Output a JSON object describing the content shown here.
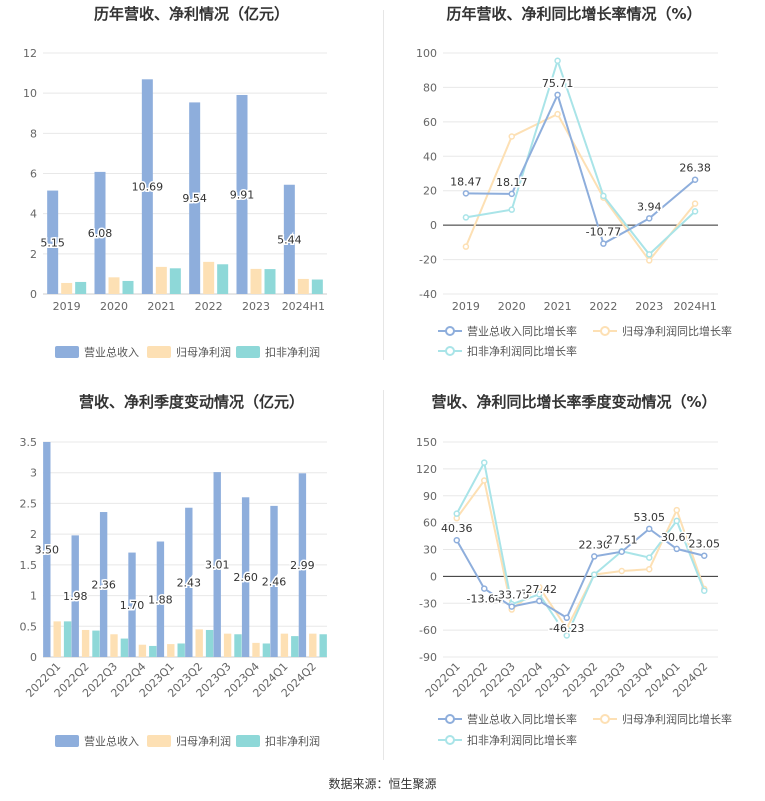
{
  "source": "数据来源：恒生聚源",
  "chart_data": [
    {
      "type": "bar",
      "title": "历年营收、净利情况（亿元）",
      "categories": [
        "2019",
        "2020",
        "2021",
        "2022",
        "2023",
        "2024H1"
      ],
      "ylim": [
        0,
        12
      ],
      "yticks": [
        0,
        2,
        4,
        6,
        8,
        10,
        12
      ],
      "legend_position": "bottom",
      "series": [
        {
          "name": "营业总收入",
          "color": "#8eaedc",
          "values": [
            5.15,
            6.08,
            10.69,
            9.54,
            9.91,
            5.44
          ],
          "labels": [
            "5.15",
            "6.08",
            "10.69",
            "9.54",
            "9.91",
            "5.44"
          ]
        },
        {
          "name": "归母净利润",
          "color": "#fde0b4",
          "values": [
            0.55,
            0.83,
            1.35,
            1.6,
            1.25,
            0.75
          ]
        },
        {
          "name": "扣非净利润",
          "color": "#8ed8d8",
          "values": [
            0.6,
            0.65,
            1.28,
            1.48,
            1.24,
            0.72
          ]
        }
      ]
    },
    {
      "type": "line",
      "title": "历年营收、净利同比增长率情况（%）",
      "categories": [
        "2019",
        "2020",
        "2021",
        "2022",
        "2023",
        "2024H1"
      ],
      "ylim": [
        -40,
        100
      ],
      "yticks": [
        -40,
        -20,
        0,
        20,
        40,
        60,
        80,
        100
      ],
      "legend_position": "bottom",
      "series": [
        {
          "name": "营业总收入同比增长率",
          "color": "#8eaedc",
          "values": [
            18.47,
            18.17,
            75.71,
            -10.77,
            3.94,
            26.38
          ],
          "labels": [
            "18.47",
            "18.17",
            "75.71",
            "-10.77",
            "3.94",
            "26.38"
          ]
        },
        {
          "name": "归母净利润同比增长率",
          "color": "#fde0b4",
          "values": [
            -12.5,
            51.5,
            64.5,
            16.0,
            -20.5,
            12.5
          ]
        },
        {
          "name": "扣非净利润同比增长率",
          "color": "#a9e4e8",
          "values": [
            4.5,
            9.0,
            95.5,
            17.0,
            -17.0,
            8.0
          ]
        }
      ]
    },
    {
      "type": "bar",
      "title": "营收、净利季度变动情况（亿元）",
      "categories": [
        "2022Q1",
        "2022Q2",
        "2022Q3",
        "2022Q4",
        "2023Q1",
        "2023Q2",
        "2023Q3",
        "2023Q4",
        "2024Q1",
        "2024Q2"
      ],
      "ylim": [
        0,
        3.5
      ],
      "yticks": [
        0,
        0.5,
        1,
        1.5,
        2,
        2.5,
        3,
        3.5
      ],
      "legend_position": "bottom",
      "series": [
        {
          "name": "营业总收入",
          "color": "#8eaedc",
          "values": [
            3.5,
            1.98,
            2.36,
            1.7,
            1.88,
            2.43,
            3.01,
            2.6,
            2.46,
            2.99
          ],
          "labels": [
            "3.50",
            "1.98",
            "2.36",
            "1.70",
            "1.88",
            "2.43",
            "3.01",
            "2.60",
            "2.46",
            "2.99"
          ]
        },
        {
          "name": "归母净利润",
          "color": "#fde0b4",
          "values": [
            0.58,
            0.44,
            0.37,
            0.2,
            0.21,
            0.45,
            0.38,
            0.23,
            0.38,
            0.38
          ]
        },
        {
          "name": "扣非净利润",
          "color": "#8ed8d8",
          "values": [
            0.58,
            0.43,
            0.3,
            0.18,
            0.22,
            0.44,
            0.37,
            0.22,
            0.34,
            0.37
          ]
        }
      ]
    },
    {
      "type": "line",
      "title": "营收、净利同比增长率季度变动情况（%）",
      "categories": [
        "2022Q1",
        "2022Q2",
        "2022Q3",
        "2022Q4",
        "2023Q1",
        "2023Q2",
        "2023Q3",
        "2023Q4",
        "2024Q1",
        "2024Q2"
      ],
      "ylim": [
        -90,
        150
      ],
      "yticks": [
        -90,
        -60,
        -30,
        0,
        30,
        60,
        90,
        120,
        150
      ],
      "legend_position": "bottom",
      "series": [
        {
          "name": "营业总收入同比增长率",
          "color": "#8eaedc",
          "values": [
            40.36,
            -13.64,
            -33.75,
            -27.42,
            -46.23,
            22.3,
            27.51,
            53.05,
            30.67,
            23.05
          ],
          "labels": [
            "40.36",
            "-13.64",
            "-33.75",
            "-27.42",
            "-46.23",
            "22.30",
            "27.51",
            "53.05",
            "30.67",
            "23.05"
          ]
        },
        {
          "name": "归母净利润同比增长率",
          "color": "#fde0b4",
          "values": [
            65,
            107,
            -37,
            -12,
            -58,
            2,
            6,
            8,
            74,
            -14
          ]
        },
        {
          "name": "扣非净利润同比增长率",
          "color": "#a9e4e8",
          "values": [
            70,
            127,
            -31,
            -20,
            -66,
            2,
            28,
            21,
            62,
            -16
          ]
        }
      ]
    }
  ]
}
